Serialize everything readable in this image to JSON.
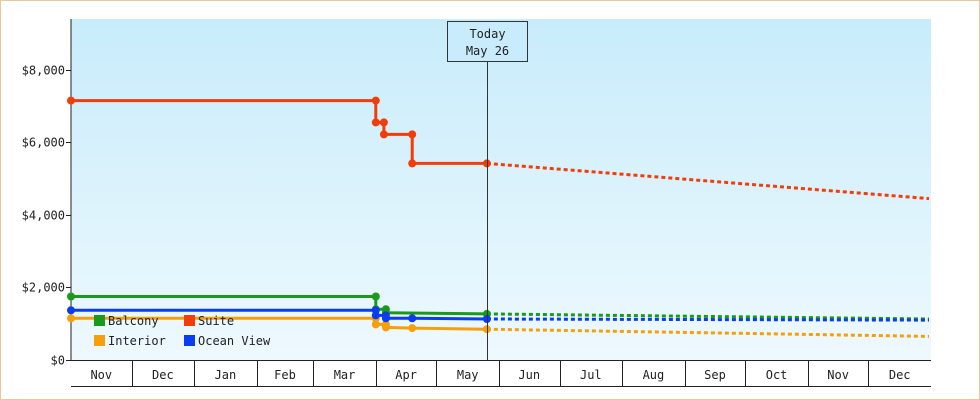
{
  "chart_data": {
    "type": "line",
    "title": "",
    "xlabel": "",
    "ylabel": "",
    "x_axis": {
      "months": [
        "Nov",
        "Dec",
        "Jan",
        "Feb",
        "Mar",
        "Apr",
        "May",
        "Jun",
        "Jul",
        "Aug",
        "Sep",
        "Oct",
        "Nov",
        "Dec"
      ],
      "start": "2024-11-01",
      "end": "2025-12-31"
    },
    "y_axis": {
      "min": 0,
      "max": 9400,
      "ticks": [
        {
          "value": 0,
          "label": "$0"
        },
        {
          "value": 2000,
          "label": "$2,000"
        },
        {
          "value": 4000,
          "label": "$4,000"
        },
        {
          "value": 6000,
          "label": "$6,000"
        },
        {
          "value": 8000,
          "label": "$8,000"
        }
      ]
    },
    "today": {
      "date": "2025-05-26",
      "label_line1": "Today",
      "label_line2": "May 26"
    },
    "legend_position": "bottom-left",
    "grid": false,
    "series": [
      {
        "name": "Balcony",
        "color": "#1a9a1a",
        "points": [
          {
            "x": "2024-11-01",
            "y": 1750
          },
          {
            "x": "2025-04-01",
            "y": 1750
          },
          {
            "x": "2025-04-01",
            "y": 1400
          },
          {
            "x": "2025-04-06",
            "y": 1400
          },
          {
            "x": "2025-04-06",
            "y": 1300
          },
          {
            "x": "2025-05-26",
            "y": 1270
          }
        ],
        "forecast": [
          {
            "x": "2025-05-26",
            "y": 1270
          },
          {
            "x": "2025-12-31",
            "y": 1130
          }
        ]
      },
      {
        "name": "Suite",
        "color": "#f23c0a",
        "points": [
          {
            "x": "2024-11-01",
            "y": 7150
          },
          {
            "x": "2025-04-01",
            "y": 7150
          },
          {
            "x": "2025-04-01",
            "y": 6550
          },
          {
            "x": "2025-04-05",
            "y": 6550
          },
          {
            "x": "2025-04-05",
            "y": 6220
          },
          {
            "x": "2025-04-19",
            "y": 6220
          },
          {
            "x": "2025-04-19",
            "y": 5420
          },
          {
            "x": "2025-05-26",
            "y": 5420
          }
        ],
        "forecast": [
          {
            "x": "2025-05-26",
            "y": 5420
          },
          {
            "x": "2025-12-31",
            "y": 4450
          }
        ]
      },
      {
        "name": "Interior",
        "color": "#f5a00a",
        "points": [
          {
            "x": "2024-11-01",
            "y": 1150
          },
          {
            "x": "2025-04-01",
            "y": 1150
          },
          {
            "x": "2025-04-01",
            "y": 980
          },
          {
            "x": "2025-04-06",
            "y": 980
          },
          {
            "x": "2025-04-06",
            "y": 900
          },
          {
            "x": "2025-04-19",
            "y": 880
          },
          {
            "x": "2025-05-26",
            "y": 850
          }
        ],
        "forecast": [
          {
            "x": "2025-05-26",
            "y": 850
          },
          {
            "x": "2025-12-31",
            "y": 650
          }
        ]
      },
      {
        "name": "Ocean View",
        "color": "#0a3cf0",
        "points": [
          {
            "x": "2024-11-01",
            "y": 1370
          },
          {
            "x": "2025-04-01",
            "y": 1370
          },
          {
            "x": "2025-04-01",
            "y": 1230
          },
          {
            "x": "2025-04-06",
            "y": 1230
          },
          {
            "x": "2025-04-06",
            "y": 1150
          },
          {
            "x": "2025-04-19",
            "y": 1150
          },
          {
            "x": "2025-05-26",
            "y": 1130
          }
        ],
        "forecast": [
          {
            "x": "2025-05-26",
            "y": 1130
          },
          {
            "x": "2025-12-31",
            "y": 1100
          }
        ]
      }
    ]
  }
}
